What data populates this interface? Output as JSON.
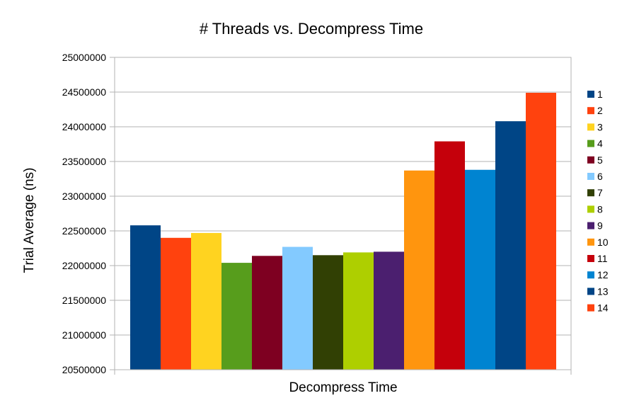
{
  "chart_data": {
    "type": "bar",
    "title": "# Threads vs. Decompress Time",
    "xlabel": "Decompress Time",
    "ylabel": "Trial Average (ns)",
    "categories": [
      "Decompress Time"
    ],
    "ylim": [
      20500000,
      25000000
    ],
    "y_tick_step": 500000,
    "y_ticks": [
      "25000000",
      "24500000",
      "24000000",
      "23500000",
      "23000000",
      "22500000",
      "22000000",
      "21500000",
      "21000000",
      "20500000"
    ],
    "grid": true,
    "legend_position": "right",
    "series": [
      {
        "name": "1",
        "color": "#004586",
        "values": [
          22580000
        ]
      },
      {
        "name": "2",
        "color": "#ff420e",
        "values": [
          22400000
        ]
      },
      {
        "name": "3",
        "color": "#ffd320",
        "values": [
          22470000
        ]
      },
      {
        "name": "4",
        "color": "#579d1c",
        "values": [
          22040000
        ]
      },
      {
        "name": "5",
        "color": "#7e0021",
        "values": [
          22140000
        ]
      },
      {
        "name": "6",
        "color": "#83caff",
        "values": [
          22270000
        ]
      },
      {
        "name": "7",
        "color": "#314004",
        "values": [
          22150000
        ]
      },
      {
        "name": "8",
        "color": "#aecf00",
        "values": [
          22190000
        ]
      },
      {
        "name": "9",
        "color": "#4b1f6f",
        "values": [
          22200000
        ]
      },
      {
        "name": "10",
        "color": "#ff950e",
        "values": [
          23370000
        ]
      },
      {
        "name": "11",
        "color": "#c5000b",
        "values": [
          23790000
        ]
      },
      {
        "name": "12",
        "color": "#0084d1",
        "values": [
          23380000
        ]
      },
      {
        "name": "13",
        "color": "#004586",
        "values": [
          24080000
        ]
      },
      {
        "name": "14",
        "color": "#ff420e",
        "values": [
          24490000
        ]
      }
    ]
  }
}
